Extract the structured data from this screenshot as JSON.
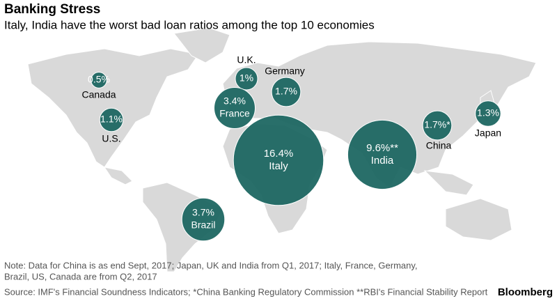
{
  "chart_data": {
    "type": "bubble",
    "title": "Banking Stress",
    "subtitle": "Italy, India have the worst bad loan ratios among the top 10 economies",
    "categories": [
      "Canada",
      "U.S.",
      "U.K.",
      "Germany",
      "France",
      "Italy",
      "India",
      "China",
      "Japan",
      "Brazil"
    ],
    "values": [
      0.5,
      1.1,
      1,
      1.7,
      3.4,
      16.4,
      9.6,
      1.7,
      1.3,
      3.7
    ],
    "value_labels": [
      "0.5%",
      "1.1%",
      "1%",
      "1.7%",
      "3.4%",
      "16.4%",
      "9.6%**",
      "1.7%*",
      "1.3%",
      "3.7%"
    ],
    "color": "#1d6762",
    "note": [
      "Note: Data for China is as end Sept, 2017; Japan, UK and India from Q1, 2017; Italy, France, Germany,",
      "Brazil, US, Canada are from Q2, 2017"
    ],
    "source": "Source: IMF's Financial Soundness Indicators; *China Banking Regulatory Commission **RBI's Financial Stability Report",
    "brand": "Bloomberg"
  }
}
